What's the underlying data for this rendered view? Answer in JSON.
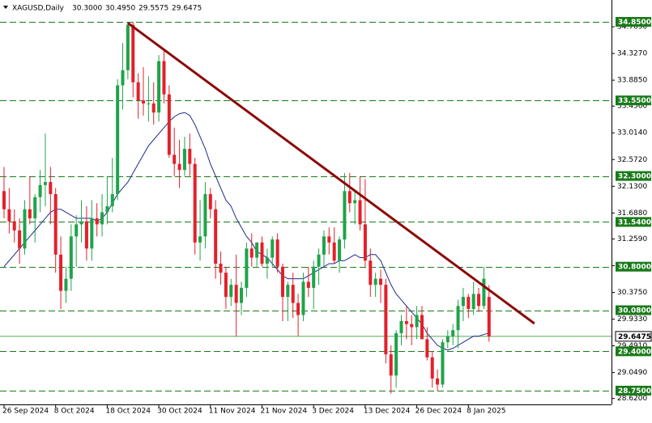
{
  "chart_data": {
    "type": "candlestick",
    "symbol": "XAGUSD,Daily",
    "ohlc": [
      "30.3000",
      "30.4950",
      "29.5575",
      "29.6475"
    ],
    "categories": [
      "26 Sep 2024",
      null,
      null,
      null,
      null,
      null,
      null,
      null,
      null,
      null,
      "8 Oct 2024",
      null,
      null,
      null,
      null,
      null,
      null,
      null,
      null,
      null,
      "18 Oct 2024",
      null,
      null,
      null,
      null,
      null,
      null,
      null,
      null,
      null,
      "30 Oct 2024",
      null,
      null,
      null,
      null,
      null,
      null,
      null,
      null,
      null,
      "11 Nov 2024",
      null,
      null,
      null,
      null,
      null,
      null,
      null,
      null,
      null,
      "21 Nov 2024",
      null,
      null,
      null,
      null,
      null,
      null,
      null,
      null,
      null,
      "3 Dec 2024",
      null,
      null,
      null,
      null,
      null,
      null,
      null,
      null,
      null,
      "13 Dec 2024",
      null,
      null,
      null,
      null,
      null,
      null,
      null,
      null,
      null,
      "26 Dec 2024",
      null,
      null,
      null,
      null,
      null,
      null,
      null,
      null,
      null,
      "8 Jan 2025",
      null,
      null,
      null,
      null
    ],
    "open": [
      32.05,
      31.75,
      31.55,
      31.4,
      31.1,
      31.75,
      31.6,
      31.95,
      32.15,
      32.2,
      32.0,
      31.0,
      30.4,
      30.6,
      31.3,
      31.5,
      31.55,
      31.1,
      31.6,
      31.5,
      31.7,
      31.8,
      32.0,
      33.8,
      34.05,
      34.8,
      33.85,
      33.55,
      33.5,
      33.5,
      33.35,
      34.2,
      33.65,
      32.65,
      32.5,
      32.4,
      32.75,
      32.5,
      31.2,
      31.3,
      32.0,
      31.75,
      30.85,
      30.7,
      30.3,
      30.5,
      30.2,
      30.45,
      31.1,
      30.95,
      31.2,
      30.85,
      30.95,
      31.25,
      30.8,
      30.3,
      30.5,
      30.2,
      30.0,
      30.55,
      30.45,
      30.8,
      31.0,
      31.3,
      31.2,
      30.9,
      31.25,
      32.05,
      31.85,
      31.9,
      31.5,
      30.9,
      30.5,
      30.6,
      30.5,
      29.35,
      29.0,
      29.7,
      29.9,
      29.85,
      29.8,
      30.0,
      29.6,
      29.3,
      28.95,
      28.85,
      29.55,
      29.65,
      29.75,
      30.15,
      30.3,
      30.1,
      30.35,
      30.15,
      30.3
    ],
    "high": [
      32.45,
      32.1,
      31.75,
      31.6,
      31.9,
      32.3,
      32.0,
      32.4,
      33.0,
      32.45,
      32.1,
      31.3,
      30.8,
      31.5,
      31.65,
      31.9,
      31.8,
      31.9,
      31.85,
      32.0,
      32.3,
      32.6,
      33.9,
      34.5,
      34.85,
      34.85,
      34.0,
      34.1,
      33.95,
      33.85,
      34.3,
      34.4,
      33.8,
      33.1,
      32.9,
      32.95,
      33.0,
      32.6,
      31.9,
      32.2,
      32.1,
      31.9,
      31.05,
      30.8,
      30.6,
      31.0,
      30.55,
      31.2,
      31.35,
      31.2,
      31.3,
      31.1,
      31.3,
      31.35,
      30.85,
      30.55,
      30.7,
      30.35,
      30.7,
      30.8,
      30.9,
      31.1,
      31.4,
      31.45,
      31.45,
      31.3,
      32.35,
      32.35,
      32.05,
      32.3,
      32.25,
      31.1,
      30.7,
      30.75,
      30.6,
      29.5,
      29.75,
      30.0,
      30.15,
      30.0,
      30.15,
      30.15,
      29.8,
      29.4,
      29.1,
      29.6,
      29.75,
      29.85,
      30.25,
      30.45,
      30.35,
      30.55,
      30.45,
      30.8,
      30.495
    ],
    "low": [
      31.6,
      31.35,
      31.2,
      30.85,
      31.0,
      31.5,
      31.2,
      31.7,
      31.8,
      31.5,
      30.7,
      30.1,
      30.2,
      30.4,
      30.8,
      31.2,
      30.9,
      30.9,
      31.3,
      31.3,
      31.5,
      31.7,
      31.9,
      33.4,
      33.9,
      33.6,
      33.25,
      33.3,
      33.2,
      33.15,
      33.2,
      33.5,
      32.6,
      32.3,
      32.1,
      32.3,
      32.3,
      31.0,
      30.9,
      31.1,
      31.6,
      30.6,
      30.5,
      30.1,
      30.15,
      29.65,
      30.0,
      30.3,
      30.8,
      30.8,
      30.8,
      30.6,
      30.8,
      30.7,
      29.9,
      29.9,
      29.95,
      29.65,
      29.9,
      30.3,
      30.1,
      30.5,
      30.8,
      31.0,
      30.85,
      30.7,
      31.1,
      31.7,
      31.5,
      31.4,
      30.8,
      30.3,
      30.3,
      30.2,
      29.2,
      28.7,
      28.8,
      29.5,
      29.6,
      29.5,
      29.6,
      29.6,
      29.25,
      28.8,
      28.75,
      28.8,
      29.45,
      29.5,
      29.45,
      29.9,
      29.95,
      30.0,
      30.05,
      30.1,
      29.5575
    ],
    "close": [
      31.75,
      31.55,
      31.4,
      31.1,
      31.75,
      31.6,
      31.95,
      32.15,
      32.2,
      32.0,
      31.0,
      30.4,
      30.6,
      31.3,
      31.5,
      31.55,
      31.1,
      31.6,
      31.5,
      31.7,
      31.8,
      32.0,
      33.8,
      34.05,
      34.8,
      33.85,
      33.55,
      33.5,
      33.5,
      33.35,
      34.2,
      33.65,
      32.65,
      32.5,
      32.4,
      32.75,
      32.5,
      31.2,
      31.3,
      32.0,
      31.75,
      30.85,
      30.7,
      30.3,
      30.5,
      30.2,
      30.45,
      31.1,
      30.95,
      31.2,
      30.85,
      30.95,
      31.25,
      30.8,
      30.3,
      30.5,
      30.2,
      30.0,
      30.55,
      30.45,
      30.8,
      31.0,
      31.3,
      31.2,
      30.9,
      31.25,
      32.05,
      31.85,
      31.9,
      31.5,
      30.9,
      30.5,
      30.6,
      30.5,
      29.35,
      29.0,
      29.7,
      29.9,
      29.85,
      29.8,
      30.0,
      29.6,
      29.3,
      28.95,
      28.85,
      29.55,
      29.65,
      29.75,
      30.15,
      30.3,
      30.1,
      30.35,
      30.15,
      30.6,
      29.6475
    ],
    "up_color": "#1fa34a",
    "down_color": "#e3202b",
    "ma": {
      "color": "#1c2a8c",
      "values": [
        30.8,
        30.9,
        31.0,
        31.1,
        31.2,
        31.3,
        31.4,
        31.5,
        31.6,
        31.7,
        31.75,
        31.75,
        31.7,
        31.65,
        31.6,
        31.6,
        31.6,
        31.6,
        31.55,
        31.6,
        31.7,
        31.85,
        32.0,
        32.1,
        32.2,
        32.35,
        32.5,
        32.65,
        32.8,
        32.9,
        33.0,
        33.1,
        33.2,
        33.28,
        33.33,
        33.35,
        33.3,
        33.15,
        32.95,
        32.75,
        32.5,
        32.3,
        32.1,
        31.9,
        31.8,
        31.6,
        31.45,
        31.3,
        31.2,
        31.05,
        31.0,
        30.95,
        30.85,
        30.75,
        30.65,
        30.6,
        30.6,
        30.6,
        30.6,
        30.65,
        30.7,
        30.75,
        30.8,
        30.85,
        30.85,
        30.9,
        30.9,
        30.95,
        31.0,
        30.95,
        30.95,
        31.0,
        31.0,
        30.9,
        30.7,
        30.5,
        30.35,
        30.25,
        30.15,
        30.05,
        29.95,
        29.85,
        29.7,
        29.6,
        29.5,
        29.45,
        29.42,
        29.45,
        29.5,
        29.55,
        29.6,
        29.65,
        29.65,
        29.68,
        29.7
      ]
    },
    "trendline": {
      "color": "#8b0a0a",
      "x": [
        24,
        102.8
      ],
      "y": [
        34.83,
        29.86
      ]
    },
    "levels": {
      "color": "#1a7a1a",
      "values": [
        {
          "value": 34.85,
          "label": "34.8500"
        },
        {
          "value": 33.55,
          "label": "33.5500"
        },
        {
          "value": 32.3,
          "label": "32.3000"
        },
        {
          "value": 31.54,
          "label": "31.5400"
        },
        {
          "value": 30.8,
          "label": "30.8000"
        },
        {
          "value": 30.08,
          "label": "30.0800"
        },
        {
          "value": 29.4,
          "label": "29.4000"
        },
        {
          "value": 28.75,
          "label": "28.7500"
        }
      ]
    },
    "current_price": {
      "value": 29.6475,
      "color": "#5aa55a"
    },
    "ylim": [
      28.522,
      35.211
    ],
    "yticks": [
      {
        "value": 34.769,
        "label": "34.7690"
      },
      {
        "value": 34.327,
        "label": "34.3270"
      },
      {
        "value": 33.885,
        "label": "33.8850"
      },
      {
        "value": 33.456,
        "label": "33.4560"
      },
      {
        "value": 33.014,
        "label": "33.0140"
      },
      {
        "value": 32.572,
        "label": "32.5720"
      },
      {
        "value": 32.13,
        "label": "32.1300"
      },
      {
        "value": 31.688,
        "label": "31.6880"
      },
      {
        "value": 31.259,
        "label": "31.2590"
      },
      {
        "value": 30.817,
        "label": "30.8170"
      },
      {
        "value": 30.375,
        "label": "30.3750"
      },
      {
        "value": 29.933,
        "label": "29.9330"
      },
      {
        "value": 29.491,
        "label": "29.4910"
      },
      {
        "value": 29.049,
        "label": "29.0490"
      },
      {
        "value": 28.62,
        "label": "28.6200"
      }
    ]
  }
}
